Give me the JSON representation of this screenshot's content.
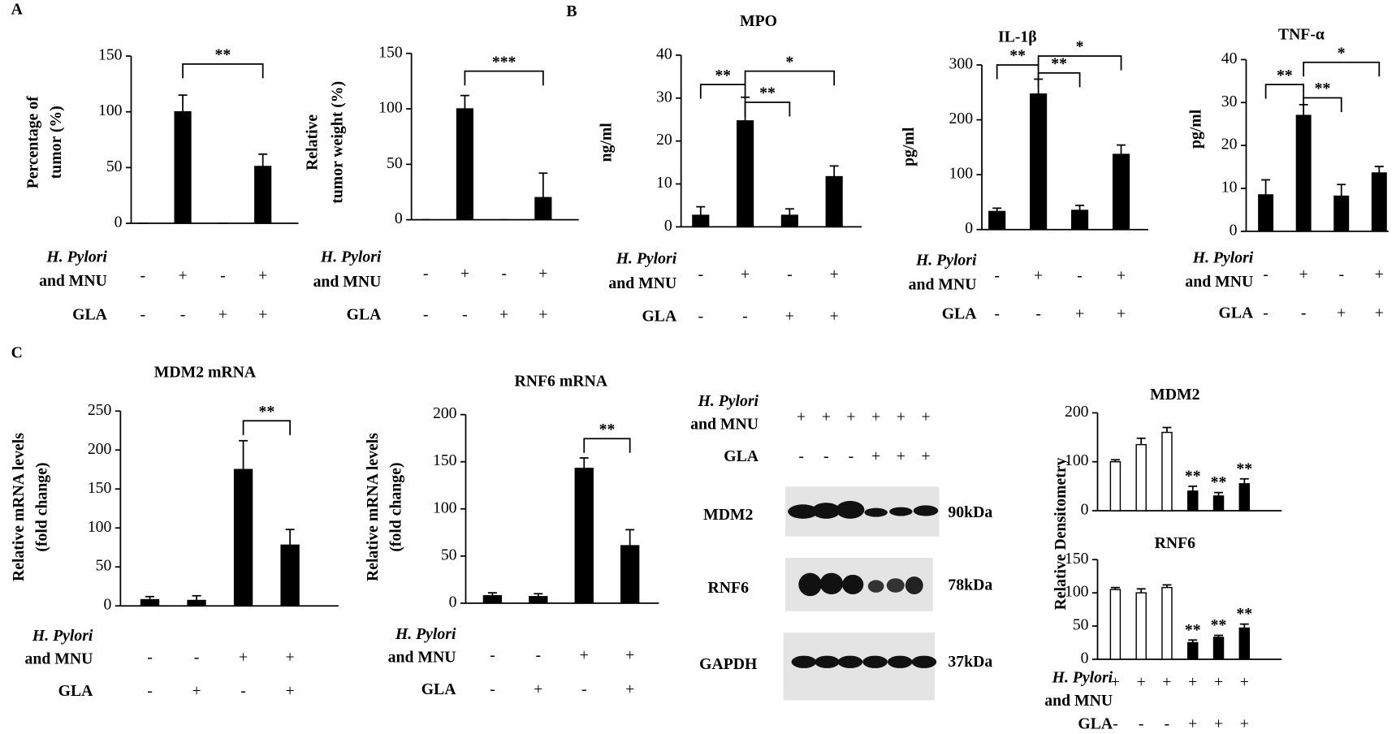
{
  "panels": [
    "A",
    "B",
    "C"
  ],
  "chart_data": [
    {
      "type": "bar",
      "ylabel": [
        "Percentage of",
        "tumor (%)"
      ],
      "values": [
        0,
        100,
        0,
        51
      ],
      "errors": [
        0,
        15,
        0,
        11
      ],
      "color": "#000000",
      "ylim": [
        0,
        150
      ],
      "yticks": [
        0,
        50,
        100,
        150
      ],
      "annotations": [
        {
          "from": 1,
          "to": 3,
          "label": "**"
        }
      ],
      "conditions": [
        {
          "label": [
            "H. Pylori",
            "and MNU"
          ],
          "signs": [
            "-",
            "+",
            "-",
            "+"
          ]
        },
        {
          "label": [
            "GLA"
          ],
          "signs": [
            "-",
            "-",
            "+",
            "+"
          ]
        }
      ]
    },
    {
      "type": "bar",
      "ylabel": [
        "Relative",
        "tumor weight (%)"
      ],
      "values": [
        0,
        100,
        0,
        20
      ],
      "errors": [
        0,
        12,
        0,
        22
      ],
      "color": "#000000",
      "ylim": [
        0,
        150
      ],
      "yticks": [
        0,
        50,
        100,
        150
      ],
      "annotations": [
        {
          "from": 1,
          "to": 3,
          "label": "***"
        }
      ],
      "conditions": [
        {
          "label": [
            "H. Pylori",
            "and MNU"
          ],
          "signs": [
            "-",
            "+",
            "-",
            "+"
          ]
        },
        {
          "label": [
            "GLA"
          ],
          "signs": [
            "-",
            "-",
            "+",
            "+"
          ]
        }
      ]
    },
    {
      "type": "bar",
      "title": "MPO",
      "ylabel": [
        "ng/ml"
      ],
      "values": [
        2.7,
        24.7,
        2.7,
        11.7
      ],
      "errors": [
        2,
        5.5,
        1.5,
        2.5
      ],
      "color": "#000000",
      "ylim": [
        0,
        40
      ],
      "yticks": [
        0,
        10,
        20,
        30,
        40
      ],
      "annotations": [
        {
          "from": 0,
          "to": 1,
          "label": "**"
        },
        {
          "from": 1,
          "to": 2,
          "label": "**"
        },
        {
          "from": 1,
          "to": 3,
          "label": "*"
        }
      ],
      "conditions": [
        {
          "label": [
            "H. Pylori",
            "and MNU"
          ],
          "signs": [
            "-",
            "+",
            "-",
            "+"
          ]
        },
        {
          "label": [
            "GLA"
          ],
          "signs": [
            "-",
            "-",
            "+",
            "+"
          ]
        }
      ]
    },
    {
      "type": "bar",
      "title": "IL-1β",
      "ylabel": [
        "pg/ml"
      ],
      "values": [
        33,
        247,
        35,
        137
      ],
      "errors": [
        6,
        27,
        9,
        17
      ],
      "color": "#000000",
      "ylim": [
        0,
        300
      ],
      "yticks": [
        0,
        100,
        200,
        300
      ],
      "annotations": [
        {
          "from": 0,
          "to": 1,
          "label": "**"
        },
        {
          "from": 1,
          "to": 2,
          "label": "**"
        },
        {
          "from": 1,
          "to": 3,
          "label": "*"
        }
      ],
      "conditions": [
        {
          "label": [
            "H. Pylori",
            "and MNU"
          ],
          "signs": [
            "-",
            "+",
            "-",
            "+"
          ]
        },
        {
          "label": [
            "GLA"
          ],
          "signs": [
            "-",
            "-",
            "+",
            "+"
          ]
        }
      ]
    },
    {
      "type": "bar",
      "title": "TNF-α",
      "ylabel": [
        "pg/ml"
      ],
      "values": [
        8.5,
        27,
        8.2,
        13.6
      ],
      "errors": [
        3.5,
        2.5,
        2.7,
        1.5
      ],
      "color": "#000000",
      "ylim": [
        0,
        40
      ],
      "yticks": [
        0,
        10,
        20,
        30,
        40
      ],
      "annotations": [
        {
          "from": 0,
          "to": 1,
          "label": "**"
        },
        {
          "from": 1,
          "to": 2,
          "label": "**"
        },
        {
          "from": 1,
          "to": 3,
          "label": "*"
        }
      ],
      "conditions": [
        {
          "label": [
            "H. Pylori",
            "and MNU"
          ],
          "signs": [
            "-",
            "+",
            "-",
            "+"
          ]
        },
        {
          "label": [
            "GLA"
          ],
          "signs": [
            "-",
            "-",
            "+",
            "+"
          ]
        }
      ]
    },
    {
      "type": "bar",
      "title": "MDM2 mRNA",
      "ylabel": [
        "Relative mRNA levels",
        "(fold change)"
      ],
      "values": [
        8,
        7,
        175,
        78
      ],
      "errors": [
        4,
        6,
        37,
        20
      ],
      "color": "#000000",
      "ylim": [
        0,
        250
      ],
      "yticks": [
        0,
        50,
        100,
        150,
        200,
        250
      ],
      "annotations": [
        {
          "from": 2,
          "to": 3,
          "label": "**"
        }
      ],
      "conditions": [
        {
          "label": [
            "H. Pylori",
            "and MNU"
          ],
          "signs": [
            "-",
            "-",
            "+",
            "+"
          ]
        },
        {
          "label": [
            "GLA"
          ],
          "signs": [
            "-",
            "+",
            "-",
            "+"
          ]
        }
      ]
    },
    {
      "type": "bar",
      "title": "RNF6 mRNA",
      "ylabel": [
        "Relative mRNA levels",
        "(fold change)"
      ],
      "values": [
        8,
        7,
        143,
        61
      ],
      "errors": [
        3,
        3,
        11,
        17
      ],
      "color": "#000000",
      "ylim": [
        0,
        200
      ],
      "yticks": [
        0,
        50,
        100,
        150,
        200
      ],
      "annotations": [
        {
          "from": 2,
          "to": 3,
          "label": "**"
        }
      ],
      "conditions": [
        {
          "label": [
            "H. Pylori",
            "and MNU"
          ],
          "signs": [
            "-",
            "-",
            "+",
            "+"
          ]
        },
        {
          "label": [
            "GLA"
          ],
          "signs": [
            "-",
            "+",
            "-",
            "+"
          ]
        }
      ]
    },
    {
      "type": "bar",
      "title": "MDM2",
      "values": [
        100,
        135,
        160,
        40,
        30,
        55
      ],
      "errors": [
        4,
        13,
        10,
        10,
        7,
        10
      ],
      "colors": [
        "#ffffff",
        "#ffffff",
        "#ffffff",
        "#000000",
        "#000000",
        "#000000"
      ],
      "ylim": [
        0,
        200
      ],
      "yticks": [
        0,
        100,
        200
      ],
      "bar_annotations": [
        {
          "bar": 3,
          "label": "**"
        },
        {
          "bar": 4,
          "label": "**"
        },
        {
          "bar": 5,
          "label": "**"
        }
      ]
    },
    {
      "type": "bar",
      "title": "RNF6",
      "ylabel": [
        "Relative Densitometry"
      ],
      "values": [
        105,
        100,
        108,
        25,
        33,
        47
      ],
      "errors": [
        3,
        6,
        4,
        4,
        3,
        6
      ],
      "colors": [
        "#ffffff",
        "#ffffff",
        "#ffffff",
        "#000000",
        "#000000",
        "#000000"
      ],
      "ylim": [
        0,
        150
      ],
      "yticks": [
        0,
        50,
        100,
        150
      ],
      "bar_annotations": [
        {
          "bar": 3,
          "label": "**"
        },
        {
          "bar": 4,
          "label": "**"
        },
        {
          "bar": 5,
          "label": "**"
        }
      ],
      "conditions": [
        {
          "label": [
            "H. Pylori",
            "and MNU"
          ],
          "signs": [
            "+",
            "+",
            "+",
            "+",
            "+",
            "+"
          ]
        },
        {
          "label": [
            "GLA"
          ],
          "signs": [
            "-",
            "-",
            "-",
            "+",
            "+",
            "+"
          ]
        }
      ]
    }
  ],
  "blot": {
    "conditions": [
      {
        "label": [
          "H. Pylori",
          "and MNU"
        ],
        "signs": [
          "+",
          "+",
          "+",
          "+",
          "+",
          "+"
        ]
      },
      {
        "label": [
          "GLA"
        ],
        "signs": [
          "-",
          "-",
          "-",
          "+",
          "+",
          "+"
        ]
      }
    ],
    "bands": [
      {
        "name": "MDM2",
        "size": "90kDa"
      },
      {
        "name": "RNF6",
        "size": "78kDa"
      },
      {
        "name": "GAPDH",
        "size": "37kDa"
      }
    ]
  }
}
